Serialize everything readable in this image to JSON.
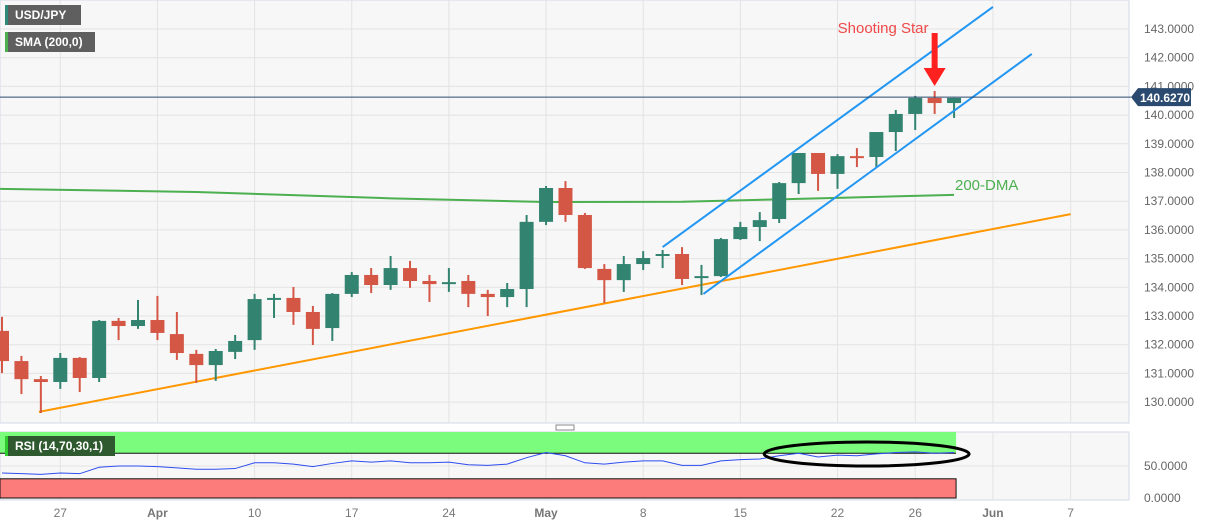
{
  "legend": {
    "symbol": "USD/JPY",
    "sma": "SMA (200,0)",
    "rsi": "RSI (14,70,30,1)"
  },
  "colors": {
    "up": "#338371",
    "down": "#d45746",
    "sma": "#4caf50",
    "support": "#ff9800",
    "channel": "#2196f3",
    "price_line": "#2b4a6f",
    "rsi_line": "#2e4df0",
    "overbought_zone": "#7cfc7c",
    "oversold_zone": "#fc7c7c",
    "annotation": "#ff2020"
  },
  "chart_data": [
    {
      "type": "candlestick",
      "title": "USD/JPY",
      "ylim": [
        129.3,
        143.8
      ],
      "yticks": [
        "143.0000",
        "142.0000",
        "141.0000",
        "140.0000",
        "139.0000",
        "138.0000",
        "137.0000",
        "136.0000",
        "135.0000",
        "134.0000",
        "133.0000",
        "132.0000",
        "131.0000",
        "130.0000"
      ],
      "ytick_values": [
        143,
        142,
        141,
        140,
        139,
        138,
        137,
        136,
        135,
        134,
        133,
        132,
        131,
        130
      ],
      "xticks": [
        {
          "label": "27",
          "index": 3,
          "bold": false
        },
        {
          "label": "Apr",
          "index": 8,
          "bold": true
        },
        {
          "label": "10",
          "index": 13,
          "bold": false
        },
        {
          "label": "17",
          "index": 18,
          "bold": false
        },
        {
          "label": "24",
          "index": 23,
          "bold": false
        },
        {
          "label": "May",
          "index": 28,
          "bold": true
        },
        {
          "label": "8",
          "index": 33,
          "bold": false
        },
        {
          "label": "15",
          "index": 38,
          "bold": false
        },
        {
          "label": "22",
          "index": 43,
          "bold": false
        },
        {
          "label": "26",
          "index": 47,
          "bold": false
        },
        {
          "label": "Jun",
          "index": 51,
          "bold": true
        },
        {
          "label": "7",
          "index": 55,
          "bold": false
        }
      ],
      "last_price": 140.627,
      "last_price_label": "140.6270",
      "ohlc": [
        [
          132.48,
          132.97,
          131.01,
          131.43
        ],
        [
          131.43,
          131.61,
          130.28,
          130.8
        ],
        [
          130.8,
          130.91,
          129.62,
          130.7
        ],
        [
          130.7,
          131.71,
          130.46,
          131.54
        ],
        [
          131.54,
          131.57,
          130.35,
          130.84
        ],
        [
          130.84,
          132.86,
          130.7,
          132.83
        ],
        [
          132.83,
          132.93,
          132.16,
          132.65
        ],
        [
          132.65,
          133.56,
          132.55,
          132.86
        ],
        [
          132.86,
          133.7,
          132.16,
          132.41
        ],
        [
          132.37,
          133.14,
          131.47,
          131.71
        ],
        [
          131.68,
          131.82,
          130.67,
          131.29
        ],
        [
          131.29,
          131.85,
          130.74,
          131.78
        ],
        [
          131.75,
          132.34,
          131.5,
          132.13
        ],
        [
          132.16,
          133.77,
          131.82,
          133.59
        ],
        [
          133.59,
          133.77,
          132.93,
          133.63
        ],
        [
          133.63,
          134.01,
          132.69,
          133.14
        ],
        [
          133.14,
          133.35,
          131.99,
          132.55
        ],
        [
          132.58,
          133.8,
          132.13,
          133.77
        ],
        [
          133.77,
          134.53,
          133.66,
          134.43
        ],
        [
          134.43,
          134.67,
          133.8,
          134.08
        ],
        [
          134.08,
          135.09,
          133.91,
          134.67
        ],
        [
          134.67,
          134.92,
          133.98,
          134.22
        ],
        [
          134.22,
          134.43,
          133.49,
          134.11
        ],
        [
          134.11,
          134.67,
          133.84,
          134.18
        ],
        [
          134.22,
          134.43,
          133.31,
          133.77
        ],
        [
          133.77,
          133.91,
          133.0,
          133.66
        ],
        [
          133.66,
          134.15,
          133.31,
          133.94
        ],
        [
          133.94,
          136.52,
          133.31,
          136.28
        ],
        [
          136.28,
          137.53,
          136.17,
          137.46
        ],
        [
          137.46,
          137.7,
          136.28,
          136.52
        ],
        [
          136.52,
          136.59,
          134.64,
          134.67
        ],
        [
          134.64,
          134.81,
          133.45,
          134.25
        ],
        [
          134.25,
          135.09,
          133.84,
          134.81
        ],
        [
          134.81,
          135.26,
          134.6,
          135.02
        ],
        [
          135.09,
          135.3,
          134.67,
          135.16
        ],
        [
          135.16,
          135.4,
          134.08,
          134.29
        ],
        [
          134.32,
          134.78,
          133.73,
          134.39
        ],
        [
          134.39,
          135.72,
          134.36,
          135.68
        ],
        [
          135.68,
          136.28,
          135.65,
          136.1
        ],
        [
          136.1,
          136.62,
          135.61,
          136.34
        ],
        [
          136.38,
          137.67,
          136.24,
          137.63
        ],
        [
          137.63,
          138.68,
          137.25,
          138.68
        ],
        [
          138.68,
          138.68,
          137.36,
          137.95
        ],
        [
          137.95,
          138.64,
          137.43,
          138.57
        ],
        [
          138.57,
          138.85,
          138.19,
          138.54
        ],
        [
          138.54,
          139.41,
          138.19,
          139.41
        ],
        [
          139.41,
          140.18,
          138.75,
          140.04
        ],
        [
          140.04,
          140.67,
          139.48,
          140.6
        ],
        [
          140.6,
          140.84,
          140.04,
          140.42
        ],
        [
          140.42,
          140.6,
          139.9,
          140.6
        ]
      ],
      "sma200": [
        [
          -0.1,
          137.43
        ],
        [
          10,
          137.32
        ],
        [
          20,
          137.1
        ],
        [
          28,
          136.97
        ],
        [
          35,
          136.98
        ],
        [
          42,
          137.1
        ],
        [
          49,
          137.22
        ]
      ],
      "annotations": {
        "shooting_star": "Shooting Star",
        "shooting_star_index": 48,
        "dma_label": "200-DMA",
        "support_line": [
          [
            1.9,
            129.66
          ],
          [
            55,
            136.55
          ]
        ],
        "channel_upper": [
          [
            34,
            135.4
          ],
          [
            51,
            143.77
          ]
        ],
        "channel_lower": [
          [
            36.1,
            133.77
          ],
          [
            53,
            142.13
          ]
        ]
      }
    },
    {
      "type": "line",
      "title": "RSI (14,70,30,1)",
      "ylim": [
        0,
        100
      ],
      "yticks": [
        "50.0000",
        "0.0000"
      ],
      "ytick_values": [
        50,
        0
      ],
      "overbought": 70,
      "oversold": 30,
      "values": [
        39,
        38,
        37,
        39,
        38,
        48,
        50,
        50,
        49,
        47,
        45,
        45,
        46,
        55,
        55,
        53,
        49,
        54,
        58,
        56,
        58,
        55,
        55,
        56,
        52,
        51,
        53,
        63,
        71,
        66,
        55,
        53,
        56,
        58,
        58,
        51,
        51,
        58,
        60,
        61,
        66,
        70,
        64,
        67,
        66,
        69,
        71,
        72,
        70,
        71
      ],
      "highlight_range": [
        40,
        49
      ]
    }
  ]
}
